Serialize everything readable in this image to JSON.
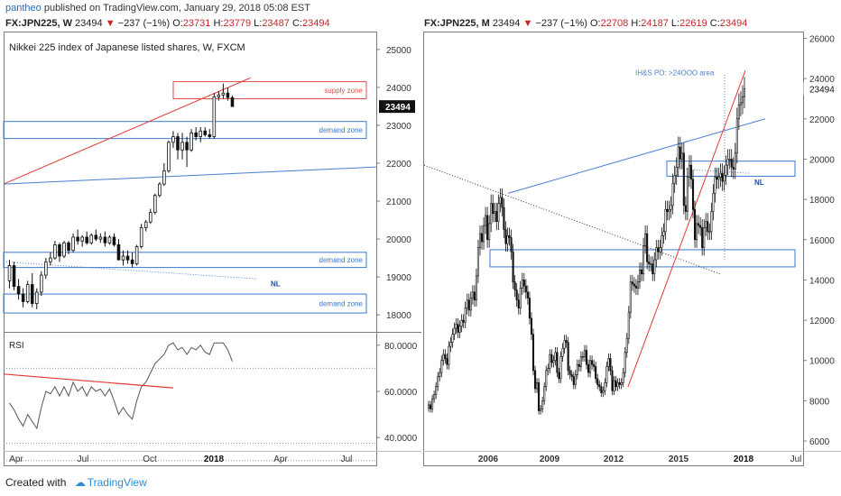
{
  "header": {
    "author": "pantheo",
    "published_text": "published on TradingView.com, January 29, 2018 05:08 EST"
  },
  "footer": {
    "created_with": "Created with",
    "brand": "TradingView"
  },
  "colors": {
    "up_candle": "#ffffff",
    "down_candle": "#111111",
    "trendline_red": "#e53935",
    "trendline_blue": "#4a7fd4",
    "supply_zone": "#d9534f",
    "demand_zone": "#3a78d0",
    "neckline_blue_dotted": "#4a7fd4"
  },
  "left_panel": {
    "symbol": "FX:JPN225, W",
    "last": "23494",
    "change": "−237 (−1%)",
    "o_label": "O:",
    "o": "23731",
    "h_label": "H:",
    "h": "23779",
    "l_label": "L:",
    "l": "23487",
    "c_label": "C:",
    "c": "23494",
    "title": "Nikkei 225 index of Japanese listed shares, W, FXCM",
    "price_badge": "23494",
    "rsi_label": "RSI",
    "annotations": {
      "supply": "supply zone",
      "demand1": "demand zone",
      "demand2": "demand zone",
      "demand3": "demand zone",
      "nl": "NL"
    }
  },
  "right_panel": {
    "symbol": "FX:JPN225, M",
    "last": "23494",
    "change": "−237 (−1%)",
    "o_label": "O:",
    "o": "22708",
    "h_label": "H:",
    "h": "24187",
    "l_label": "L:",
    "l": "22619",
    "c_label": "C:",
    "c": "23494",
    "price_badge": "23494",
    "annotations": {
      "ihs": "IH&S PO: >24OOO area",
      "nl": "NL"
    }
  },
  "chart_data": [
    {
      "type": "candlestick",
      "timeframe": "W",
      "title": "Nikkei 225 index of Japanese listed shares, W, FXCM",
      "ylim": [
        17600,
        25400
      ],
      "y_ticks": [
        "18000",
        "19000",
        "20000",
        "21000",
        "22000",
        "23000",
        "24000",
        "25000"
      ],
      "x_ticks": [
        "Apr",
        "Jul",
        "Oct",
        "2018",
        "Apr",
        "Jul"
      ],
      "ohlc": [
        [
          18900,
          19450,
          18700,
          19300
        ],
        [
          19300,
          19400,
          18650,
          18750
        ],
        [
          18750,
          18950,
          18400,
          18550
        ],
        [
          18550,
          18700,
          18200,
          18350
        ],
        [
          18350,
          18900,
          18300,
          18800
        ],
        [
          18800,
          19100,
          18200,
          18300
        ],
        [
          18300,
          18700,
          18150,
          18600
        ],
        [
          18600,
          19150,
          18500,
          19050
        ],
        [
          19050,
          19500,
          18950,
          19400
        ],
        [
          19400,
          19650,
          19300,
          19500
        ],
        [
          19500,
          19950,
          19450,
          19850
        ],
        [
          19850,
          19900,
          19400,
          19550
        ],
        [
          19550,
          19950,
          19500,
          19900
        ],
        [
          19900,
          19950,
          19600,
          19700
        ],
        [
          19700,
          20150,
          19650,
          20050
        ],
        [
          20050,
          20250,
          19850,
          19950
        ],
        [
          19950,
          20100,
          19800,
          20050
        ],
        [
          20050,
          20200,
          19850,
          19900
        ],
        [
          19900,
          20150,
          19850,
          20100
        ],
        [
          20100,
          20250,
          19950,
          20000
        ],
        [
          20000,
          20150,
          19900,
          20050
        ],
        [
          20050,
          20200,
          19800,
          19900
        ],
        [
          19900,
          20100,
          19850,
          20050
        ],
        [
          20050,
          20150,
          19800,
          19850
        ],
        [
          19850,
          20000,
          19500,
          19450
        ],
        [
          19450,
          19700,
          19300,
          19550
        ],
        [
          19550,
          19700,
          19350,
          19450
        ],
        [
          19450,
          19650,
          19250,
          19350
        ],
        [
          19350,
          19850,
          19300,
          19800
        ],
        [
          19800,
          20400,
          19750,
          20300
        ],
        [
          20300,
          20500,
          20200,
          20450
        ],
        [
          20450,
          20800,
          20400,
          20700
        ],
        [
          20700,
          21200,
          20650,
          21150
        ],
        [
          21150,
          21500,
          21100,
          21450
        ],
        [
          21450,
          22000,
          21400,
          21800
        ],
        [
          21800,
          22600,
          21750,
          22550
        ],
        [
          22550,
          22850,
          22400,
          22700
        ],
        [
          22700,
          22800,
          22100,
          22350
        ],
        [
          22350,
          22800,
          22100,
          22550
        ],
        [
          22550,
          22700,
          21900,
          22350
        ],
        [
          22350,
          22900,
          22300,
          22800
        ],
        [
          22800,
          22950,
          22600,
          22700
        ],
        [
          22700,
          22950,
          22550,
          22850
        ],
        [
          22850,
          22950,
          22700,
          22750
        ],
        [
          22750,
          22900,
          22650,
          22700
        ],
        [
          22700,
          23850,
          22650,
          23750
        ],
        [
          23750,
          23900,
          23650,
          23800
        ],
        [
          23800,
          24100,
          23700,
          23850
        ],
        [
          23850,
          24000,
          23650,
          23731
        ],
        [
          23731,
          23779,
          23487,
          23494
        ]
      ],
      "zones": [
        {
          "label": "supply zone",
          "low": 23700,
          "high": 24150
        },
        {
          "label": "demand zone",
          "low": 22650,
          "high": 23100
        },
        {
          "label": "demand zone",
          "low": 19250,
          "high": 19650
        },
        {
          "label": "demand zone",
          "low": 18050,
          "high": 18550
        }
      ],
      "rsi": {
        "ylim": [
          35,
          85
        ],
        "y_ticks": [
          "40.0000",
          "60.0000",
          "80.0000"
        ],
        "values": [
          55,
          52,
          48,
          45,
          50,
          47,
          44,
          53,
          60,
          59,
          62,
          58,
          62,
          58,
          64,
          60,
          62,
          58,
          62,
          60,
          61,
          58,
          61,
          56,
          50,
          53,
          50,
          48,
          56,
          62,
          64,
          68,
          72,
          74,
          76,
          80,
          81,
          78,
          79,
          76,
          79,
          78,
          80,
          77,
          76,
          81,
          81,
          81,
          78,
          73
        ]
      }
    },
    {
      "type": "candlestick",
      "timeframe": "M",
      "ylim": [
        5600,
        26200
      ],
      "y_ticks": [
        "6000",
        "8000",
        "10000",
        "12000",
        "14000",
        "16000",
        "18000",
        "20000",
        "22000",
        "24000",
        "26000"
      ],
      "x_ticks": [
        "2006",
        "2009",
        "2012",
        "2015",
        "2018",
        "Jul"
      ],
      "close": [
        7800,
        7600,
        8100,
        8300,
        8700,
        9200,
        9400,
        10000,
        10300,
        10100,
        9800,
        10700,
        10900,
        11300,
        11600,
        11800,
        11400,
        11700,
        12000,
        11900,
        12600,
        13000,
        12500,
        13100,
        13400,
        13000,
        14200,
        15600,
        16300,
        15900,
        16700,
        17200,
        16000,
        16800,
        17800,
        17300,
        17400,
        16900,
        17800,
        18100,
        17600,
        16500,
        15800,
        16200,
        16100,
        15400,
        13900,
        13500,
        13000,
        12600,
        13600,
        14000,
        13700,
        13400,
        13100,
        12100,
        11300,
        9500,
        8600,
        8900,
        7500,
        7600,
        8000,
        8700,
        9500,
        9600,
        10300,
        9900,
        10000,
        10400,
        9400,
        9100,
        10200,
        10600,
        11000,
        10900,
        9500,
        9300,
        9200,
        8800,
        9300,
        9800,
        9700,
        10200,
        10200,
        10500,
        9800,
        9400,
        10000,
        9800,
        9700,
        9100,
        8800,
        8700,
        8400,
        8500,
        8900,
        9700,
        10100,
        9500,
        8500,
        9000,
        8700,
        8900,
        8800,
        8900,
        9400,
        10400,
        11100,
        12400,
        13900,
        13800,
        13700,
        13600,
        13900,
        14500,
        14300,
        15700,
        16300,
        14900,
        14800,
        14800,
        14300,
        15000,
        15600,
        15400,
        15600,
        16200,
        16400,
        17500,
        17400,
        17500,
        17700,
        18800,
        19200,
        19600,
        20600,
        20000,
        20300,
        17700,
        17400,
        19100,
        19700,
        19000,
        17500,
        16000,
        16800,
        16700,
        16600,
        15600,
        16600,
        16900,
        16400,
        16400,
        17400,
        18300,
        19100,
        19000,
        19100,
        19300,
        18900,
        19200,
        19700,
        20000,
        20000,
        19600,
        19500,
        20300,
        22000,
        22700,
        22800,
        23100,
        23494
      ]
    }
  ]
}
